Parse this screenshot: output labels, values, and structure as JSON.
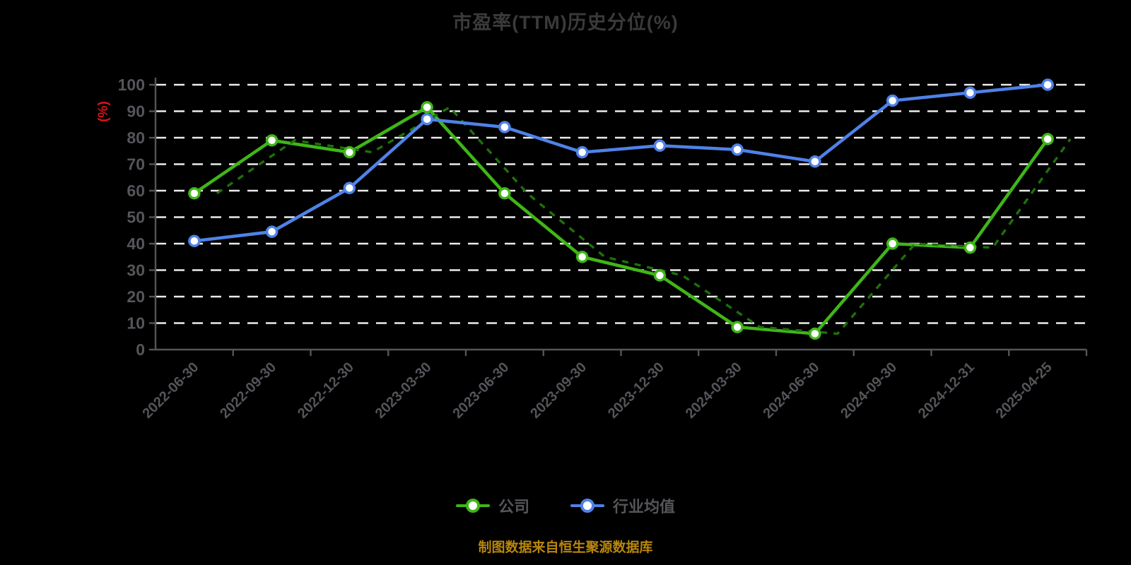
{
  "title": "市盈率(TTM)历史分位(%)",
  "y_axis_unit": "(%)",
  "source_note": "制图数据来自恒生聚源数据库",
  "colors": {
    "background": "#000000",
    "title": "#3a3a3c",
    "grid": "#ececec",
    "axis": "#55555a",
    "tick_label": "#55555a",
    "y_unit_label": "#e01212",
    "company_line": "#3fb618",
    "company_dashed_echo": "#1e7009",
    "industry_line": "#4f82e8",
    "point_fill": "#ffffff",
    "legend_text": "#55555a",
    "source_text": "#b8860b"
  },
  "chart_data": {
    "type": "line",
    "title": "市盈率(TTM)历史分位(%)",
    "ylabel": "(%)",
    "ylim": [
      0,
      100
    ],
    "y_ticks": [
      0,
      10,
      20,
      30,
      40,
      50,
      60,
      70,
      80,
      90,
      100
    ],
    "grid": "horizontal-dashed-white",
    "legend_position": "bottom",
    "categories": [
      "2022-06-30",
      "2022-09-30",
      "2022-12-30",
      "2023-03-30",
      "2023-06-30",
      "2023-09-30",
      "2023-12-30",
      "2024-03-30",
      "2024-06-30",
      "2024-09-30",
      "2024-12-31",
      "2025-04-25"
    ],
    "series": [
      {
        "name": "公司",
        "color": "#3fb618",
        "values": [
          59,
          79,
          74.5,
          91.5,
          59,
          35,
          28,
          8.5,
          6,
          40,
          38.5,
          79.5
        ]
      },
      {
        "name": "行业均值",
        "color": "#4f82e8",
        "values": [
          41,
          44.5,
          61,
          87,
          84,
          74.5,
          77,
          75.5,
          71,
          94,
          97,
          100
        ]
      }
    ]
  }
}
